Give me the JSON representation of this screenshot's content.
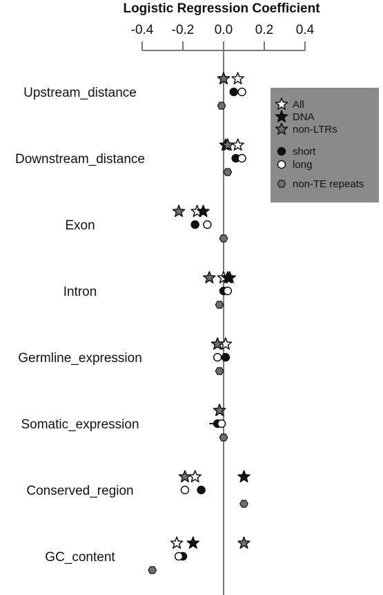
{
  "chart_data": {
    "type": "scatter",
    "title": "Logistic Regression Coefficient",
    "x_ticks": [
      "-0.4",
      "-0.2",
      "0.0",
      "0.2",
      "0.4"
    ],
    "xlim": [
      -0.4,
      0.4
    ],
    "categories": [
      "Upstream_distance",
      "Downstream_distance",
      "Exon",
      "Intron",
      "Germline_expression",
      "Somatic_expression",
      "Conserved_region",
      "GC_content"
    ],
    "legend_position": "top-right",
    "series": [
      {
        "name": "All",
        "marker": "star-open",
        "values": [
          0.07,
          0.07,
          -0.13,
          0.0,
          0.01,
          -0.02,
          -0.14,
          -0.23
        ]
      },
      {
        "name": "DNA",
        "marker": "star-black",
        "values": [
          0.0,
          0.01,
          -0.1,
          0.02,
          -0.03,
          null,
          null,
          null
        ]
      },
      {
        "name": "non-LTRs",
        "marker": "star-gray",
        "values": [
          0.0,
          0.02,
          -0.22,
          -0.07,
          -0.03,
          -0.02,
          -0.19,
          0.1
        ]
      },
      {
        "name": "",
        "marker": "star-black",
        "values": [
          null,
          null,
          null,
          0.03,
          null,
          null,
          0.1,
          -0.15
        ]
      },
      {
        "name": "short",
        "marker": "circle-black",
        "values": [
          0.05,
          0.06,
          -0.14,
          0.0,
          0.01,
          -0.03,
          -0.11,
          -0.2
        ]
      },
      {
        "name": "long",
        "marker": "circle-open",
        "values": [
          0.09,
          0.09,
          -0.08,
          0.02,
          -0.03,
          -0.01,
          -0.19,
          -0.22
        ]
      },
      {
        "name": "non-TE repeats",
        "marker": "hexagon-gray",
        "values": [
          -0.01,
          0.02,
          0.0,
          -0.02,
          -0.02,
          0.0,
          0.1,
          -0.35
        ]
      }
    ],
    "colors": {
      "black": "#111111",
      "gray": "#6f6f6f",
      "white": "#ffffff",
      "legend_bg": "#8a8a8a",
      "axis": "#777777"
    }
  }
}
